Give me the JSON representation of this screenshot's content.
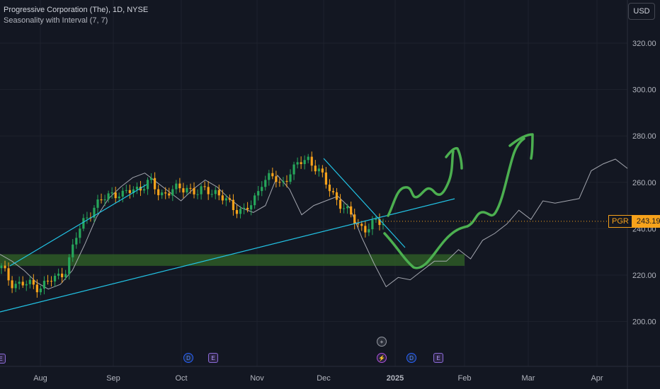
{
  "legend": {
    "title": "Progressive Corporation (The), 1D, NYSE",
    "indicator": "Seasonality with Interval (7, 7)"
  },
  "currency_button": "USD",
  "price_tag": {
    "symbol": "PGR",
    "value": "243.19"
  },
  "colors": {
    "background": "#131722",
    "grid": "#1e222d",
    "candle_up": "#26a65b",
    "candle_down": "#f7a21b",
    "trendline": "#22c4e6",
    "seasonality": "#b2b5be",
    "drawing": "#4caf50",
    "zone": "#2e5b26"
  },
  "chart_data": {
    "type": "candlestick",
    "y_axis": {
      "ticks": [
        "320.00",
        "300.00",
        "280.00",
        "260.00",
        "240.00",
        "220.00",
        "200.00"
      ],
      "ylim": [
        188,
        337
      ]
    },
    "x_axis": {
      "ticks": [
        "Aug",
        "Sep",
        "Oct",
        "Nov",
        "Dec",
        "2025",
        "Feb",
        "Mar",
        "Apr"
      ]
    },
    "last_price": 243.19,
    "price_close_path": [
      223,
      217,
      216,
      216,
      215,
      217,
      219,
      223,
      236,
      245,
      249,
      253,
      256,
      254,
      257,
      258,
      260,
      255,
      256,
      257,
      258,
      255,
      257,
      256,
      252,
      249,
      248,
      250,
      261,
      263,
      258,
      265,
      268,
      270,
      266,
      258,
      253,
      248,
      243,
      240,
      242,
      243
    ],
    "seasonality_path": [
      229,
      226,
      222,
      217,
      214,
      216,
      222,
      233,
      245,
      253,
      258,
      262,
      264,
      260,
      256,
      252,
      257,
      261,
      258,
      253,
      249,
      247,
      250,
      263,
      257,
      246,
      250,
      252,
      254,
      249,
      236,
      225,
      215,
      219,
      218,
      222,
      226,
      226,
      231,
      227,
      235,
      238,
      242,
      248,
      244,
      252,
      251,
      252,
      253,
      265,
      268,
      270,
      266
    ]
  },
  "event_markers": [
    {
      "label": "E",
      "kind": "earnings"
    },
    {
      "label": "D",
      "kind": "dividend"
    },
    {
      "label": "E",
      "kind": "earnings"
    },
    {
      "label": "+",
      "kind": "other"
    },
    {
      "label": "⚡",
      "kind": "split"
    },
    {
      "label": "D",
      "kind": "dividend"
    },
    {
      "label": "E",
      "kind": "earnings"
    }
  ]
}
